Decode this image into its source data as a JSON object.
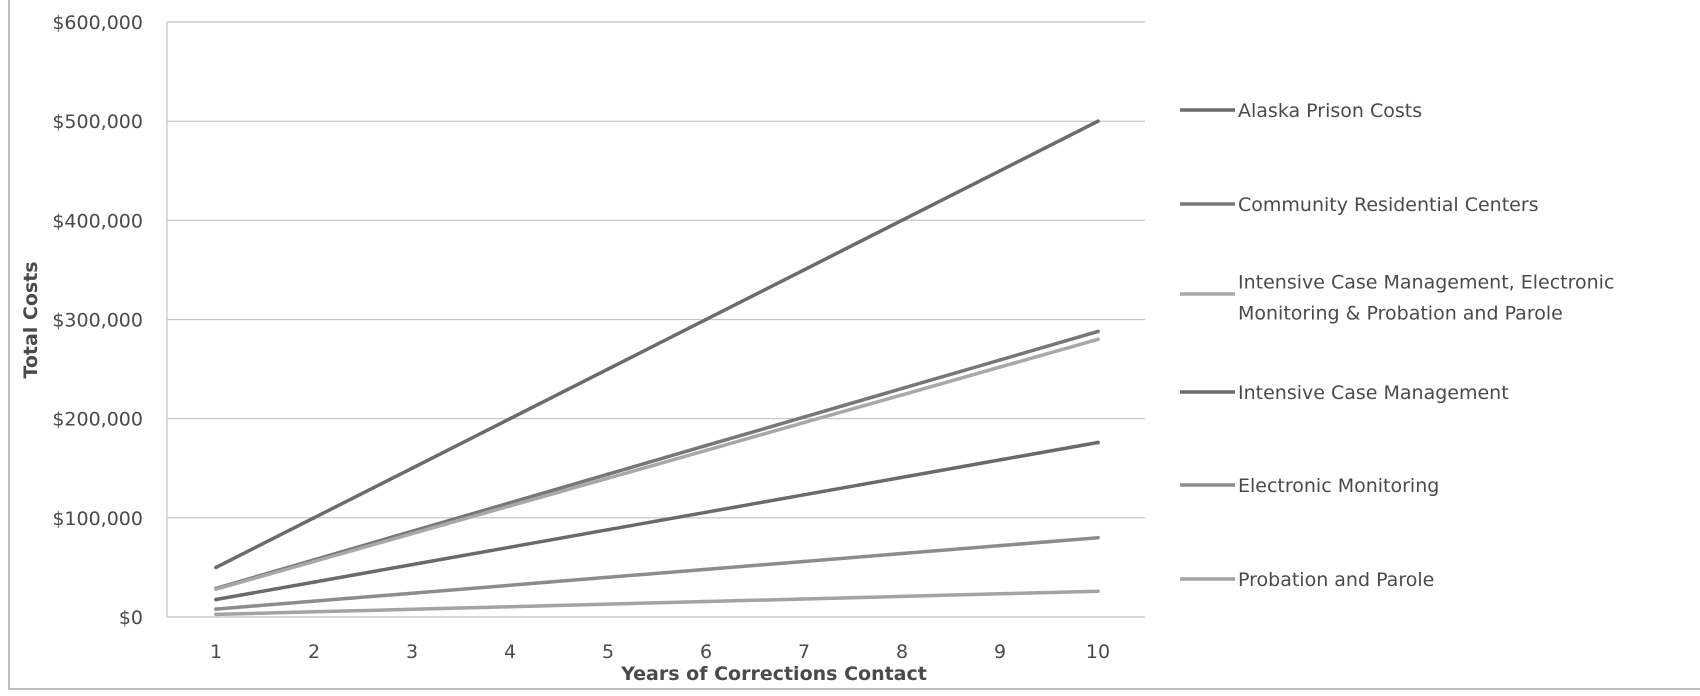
{
  "chart_data": {
    "type": "line",
    "title": "",
    "xlabel": "Years of Corrections Contact",
    "ylabel": "Total Costs",
    "x": [
      1,
      2,
      3,
      4,
      5,
      6,
      7,
      8,
      9,
      10
    ],
    "x_tick_labels": [
      "1",
      "2",
      "3",
      "4",
      "5",
      "6",
      "7",
      "8",
      "9",
      "10"
    ],
    "ylim": [
      0,
      600000
    ],
    "y_ticks": [
      0,
      100000,
      200000,
      300000,
      400000,
      500000,
      600000
    ],
    "y_tick_labels": [
      "$0",
      "$100,000",
      "$200,000",
      "$300,000",
      "$400,000",
      "$500,000",
      "$600,000"
    ],
    "grid": true,
    "legend_position": "right",
    "series": [
      {
        "name": "Alaska Prison Costs",
        "legend_lines": [
          "Alaska Prison Costs"
        ],
        "color": "#6b6b6b",
        "values": [
          50000,
          100000,
          150000,
          200000,
          250000,
          300000,
          350000,
          400000,
          450000,
          500000
        ]
      },
      {
        "name": "Community Residential Centers",
        "legend_lines": [
          "Community Residential Centers"
        ],
        "color": "#777777",
        "values": [
          28800,
          57600,
          86400,
          115200,
          144000,
          172800,
          201600,
          230400,
          259200,
          288000
        ]
      },
      {
        "name": "Intensive Case Management, Electronic Monitoring & Probation and Parole",
        "legend_lines": [
          "Intensive Case Management, Electronic",
          "Monitoring & Probation and Parole"
        ],
        "color": "#a8a8a8",
        "values": [
          28000,
          56000,
          84000,
          112000,
          140000,
          168000,
          196000,
          224000,
          252000,
          280000
        ]
      },
      {
        "name": "Intensive Case Management",
        "legend_lines": [
          "Intensive Case Management"
        ],
        "color": "#6a6a6a",
        "values": [
          17600,
          35200,
          52800,
          70400,
          88000,
          105600,
          123200,
          140800,
          158400,
          176000
        ]
      },
      {
        "name": "Electronic Monitoring",
        "legend_lines": [
          "Electronic Monitoring"
        ],
        "color": "#8c8c8c",
        "values": [
          8000,
          16000,
          24000,
          32000,
          40000,
          48000,
          56000,
          64000,
          72000,
          80000
        ]
      },
      {
        "name": "Probation and Parole",
        "legend_lines": [
          "Probation and Parole"
        ],
        "color": "#a3a3a3",
        "values": [
          2600,
          5200,
          7800,
          10400,
          13000,
          15600,
          18200,
          20800,
          23400,
          26000
        ]
      }
    ]
  }
}
